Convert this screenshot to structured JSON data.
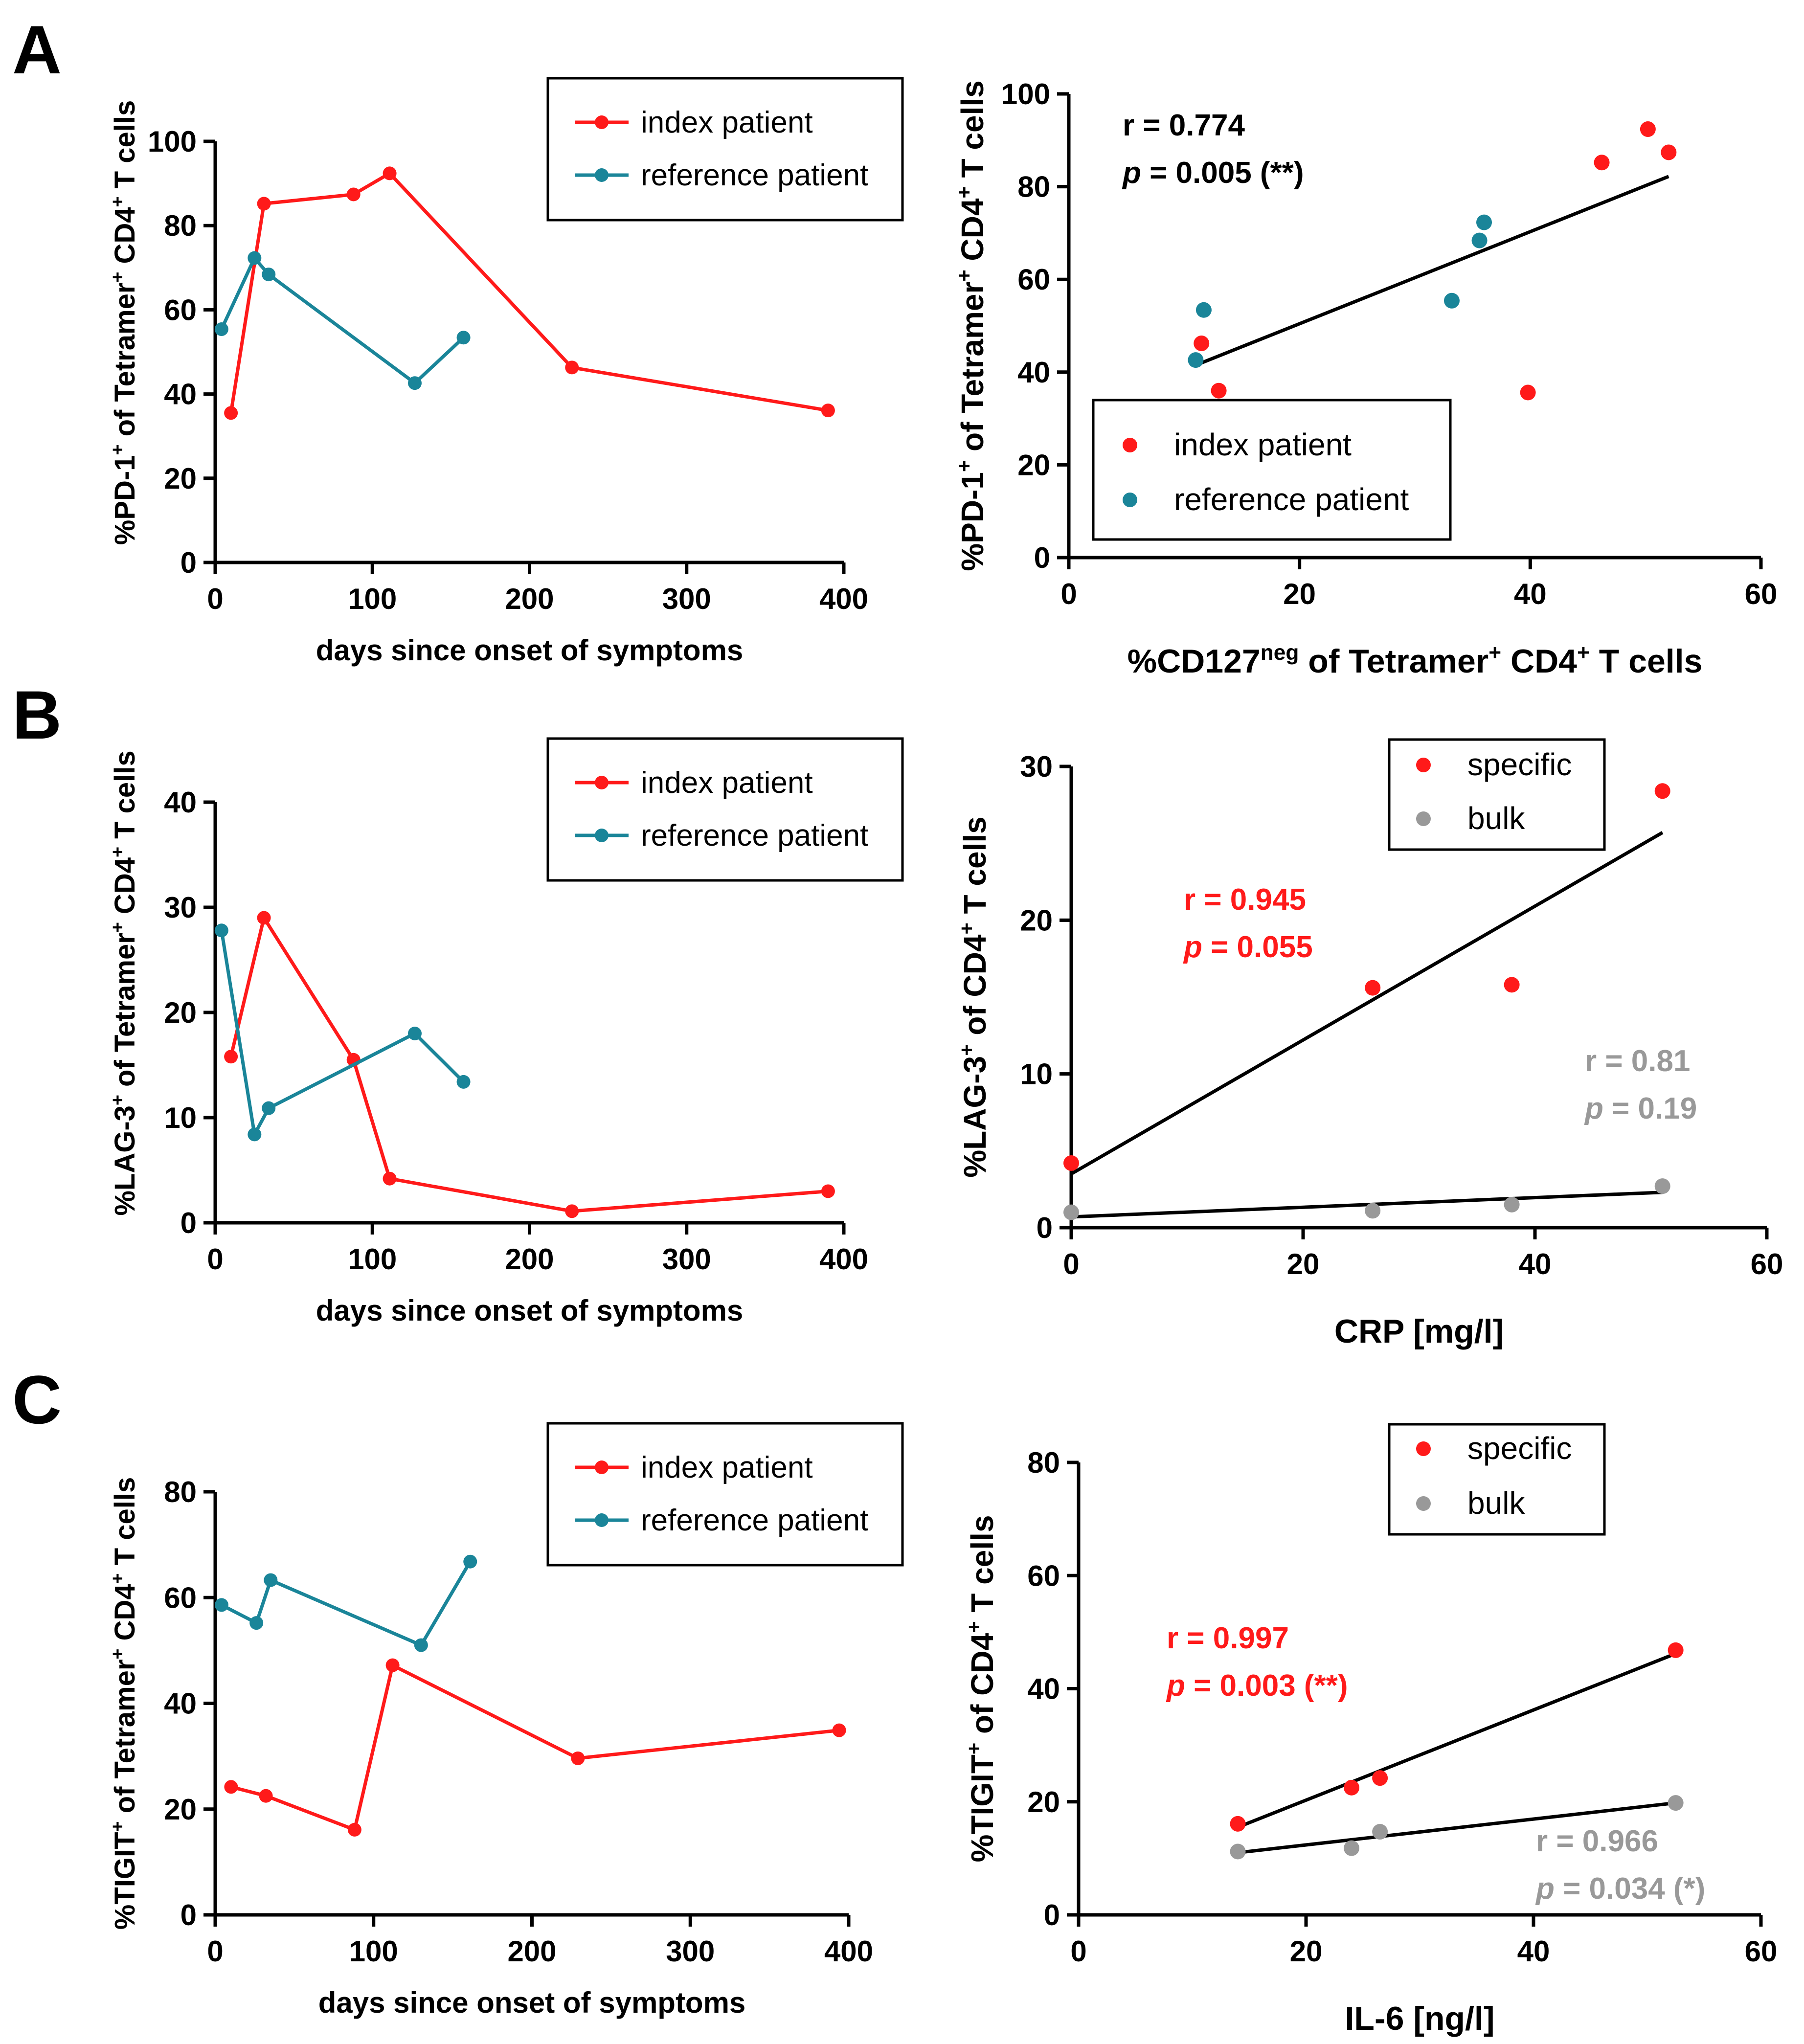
{
  "panel_labels": [
    "A",
    "B",
    "C"
  ],
  "chart_data": [
    {
      "id": "A1",
      "type": "line",
      "ylabel": "%PD-1<sup>+</sup> of Tetramer<sup>+</sup> CD4<sup>+</sup> T cells",
      "xlabel": "days since onset of symptoms",
      "xlim": [
        0,
        400
      ],
      "ylim": [
        0,
        100
      ],
      "xticks": [
        0,
        100,
        200,
        300,
        400
      ],
      "yticks": [
        0,
        20,
        40,
        60,
        80,
        100
      ],
      "legend": {
        "position": "top-right",
        "entries": [
          "index patient",
          "reference patient"
        ]
      },
      "series": [
        {
          "name": "index patient",
          "color": "#ff1a1a",
          "points": [
            [
              10,
              35.5
            ],
            [
              31,
              85.2
            ],
            [
              88,
              87.4
            ],
            [
              111,
              92.4
            ],
            [
              227,
              46.3
            ],
            [
              390,
              36.1
            ]
          ]
        },
        {
          "name": "reference patient",
          "color": "#1a8599",
          "points": [
            [
              4,
              55.4
            ],
            [
              25,
              72.3
            ],
            [
              34,
              68.4
            ],
            [
              127,
              42.6
            ],
            [
              158,
              53.4
            ]
          ]
        }
      ]
    },
    {
      "id": "A2",
      "type": "scatter",
      "ylabel": "%PD-1<sup>+</sup> of Tetramer<sup>+</sup> CD4<sup>+</sup> T cells",
      "xlabel": "%CD127<sup>neg</sup> of Tetramer<sup>+</sup> CD4<sup>+</sup> T cells",
      "xlim": [
        0,
        60
      ],
      "ylim": [
        0,
        100
      ],
      "xticks": [
        0,
        20,
        40,
        60
      ],
      "yticks": [
        0,
        20,
        40,
        60,
        80,
        100
      ],
      "legend": {
        "position": "bottom-left",
        "entries": [
          "index patient",
          "reference patient"
        ]
      },
      "series": [
        {
          "name": "index patient",
          "color": "#ff1a1a",
          "points": [
            [
              11.5,
              46.2
            ],
            [
              13.0,
              36.0
            ],
            [
              39.8,
              35.6
            ],
            [
              46.2,
              85.2
            ],
            [
              50.2,
              92.4
            ],
            [
              52.0,
              87.4
            ]
          ]
        },
        {
          "name": "reference patient",
          "color": "#1a8599",
          "points": [
            [
              11.0,
              42.6
            ],
            [
              11.7,
              53.4
            ],
            [
              33.2,
              55.4
            ],
            [
              35.6,
              68.4
            ],
            [
              36.0,
              72.3
            ]
          ]
        }
      ],
      "fits": [
        {
          "color": "#000000",
          "from": [
            11,
            41.5
          ],
          "to": [
            52,
            82.2
          ]
        }
      ],
      "annotations": [
        {
          "r": "r = 0.774",
          "p_prefix": "p",
          "p_rest": " = 0.005 (**)",
          "color": "#000000"
        }
      ]
    },
    {
      "id": "B1",
      "type": "line",
      "ylabel": "%LAG-3<sup>+</sup> of Tetramer<sup>+</sup> CD4<sup>+</sup> T cells",
      "xlabel": "days since onset of symptoms",
      "xlim": [
        0,
        400
      ],
      "ylim": [
        0,
        40
      ],
      "xticks": [
        0,
        100,
        200,
        300,
        400
      ],
      "yticks": [
        0,
        10,
        20,
        30,
        40
      ],
      "legend": {
        "position": "top-right",
        "entries": [
          "index patient",
          "reference patient"
        ]
      },
      "series": [
        {
          "name": "index patient",
          "color": "#ff1a1a",
          "points": [
            [
              10,
              15.8
            ],
            [
              31,
              29.0
            ],
            [
              88,
              15.5
            ],
            [
              111,
              4.2
            ],
            [
              227,
              1.1
            ],
            [
              390,
              3.0
            ]
          ]
        },
        {
          "name": "reference patient",
          "color": "#1a8599",
          "points": [
            [
              4,
              27.8
            ],
            [
              25,
              8.4
            ],
            [
              34,
              10.9
            ],
            [
              127,
              18.0
            ],
            [
              158,
              13.4
            ]
          ]
        }
      ]
    },
    {
      "id": "B2",
      "type": "scatter",
      "ylabel": "%LAG-3<sup>+</sup> of CD4<sup>+</sup> T cells",
      "xlabel": "CRP [mg/l]",
      "xlim": [
        0,
        60
      ],
      "ylim": [
        0,
        30
      ],
      "xticks": [
        0,
        20,
        40,
        60
      ],
      "yticks": [
        0,
        10,
        20,
        30
      ],
      "legend": {
        "position": "top-right",
        "entries": [
          "specific",
          "bulk"
        ]
      },
      "series": [
        {
          "name": "specific",
          "color": "#ff1a1a",
          "points": [
            [
              0,
              4.2
            ],
            [
              26,
              15.6
            ],
            [
              38,
              15.8
            ],
            [
              51,
              28.4
            ]
          ]
        },
        {
          "name": "bulk",
          "color": "#999999",
          "points": [
            [
              0,
              1.0
            ],
            [
              26,
              1.1
            ],
            [
              38,
              1.5
            ],
            [
              51,
              2.7
            ]
          ]
        }
      ],
      "fits": [
        {
          "color": "#000000",
          "from": [
            0,
            3.5
          ],
          "to": [
            51,
            25.7
          ]
        },
        {
          "color": "#000000",
          "from": [
            0,
            0.7
          ],
          "to": [
            51,
            2.3
          ]
        }
      ],
      "annotations": [
        {
          "r": "r = 0.945",
          "p_prefix": "p",
          "p_rest": " = 0.055",
          "color": "#ff1a1a"
        },
        {
          "r": "r = 0.81",
          "p_prefix": "p",
          "p_rest": " = 0.19",
          "color": "#999999"
        }
      ]
    },
    {
      "id": "C1",
      "type": "line",
      "ylabel": "%TIGIT<sup>+</sup> of Tetramer<sup>+</sup> CD4<sup>+</sup> T cells",
      "xlabel": "days since onset of symptoms",
      "xlim": [
        0,
        400
      ],
      "ylim": [
        0,
        80
      ],
      "xticks": [
        0,
        100,
        200,
        300,
        400
      ],
      "yticks": [
        0,
        20,
        40,
        60,
        80
      ],
      "legend": {
        "position": "top-right",
        "entries": [
          "index patient",
          "reference patient"
        ]
      },
      "series": [
        {
          "name": "index patient",
          "color": "#ff1a1a",
          "points": [
            [
              10,
              24.2
            ],
            [
              32,
              22.5
            ],
            [
              88,
              16.1
            ],
            [
              112,
              47.2
            ],
            [
              229,
              29.6
            ],
            [
              394,
              34.9
            ]
          ]
        },
        {
          "name": "reference patient",
          "color": "#1a8599",
          "points": [
            [
              4,
              58.6
            ],
            [
              26,
              55.2
            ],
            [
              35,
              63.3
            ],
            [
              130,
              51.0
            ],
            [
              161,
              66.8
            ]
          ]
        }
      ]
    },
    {
      "id": "C2",
      "type": "scatter",
      "ylabel": "%TIGIT<sup>+</sup> of CD4<sup>+</sup> T cells",
      "xlabel": "IL-6 [ng/l]",
      "xlim": [
        0,
        60
      ],
      "ylim": [
        0,
        80
      ],
      "xticks": [
        0,
        20,
        40,
        60
      ],
      "yticks": [
        0,
        20,
        40,
        60,
        80
      ],
      "legend": {
        "position": "top-right",
        "entries": [
          "specific",
          "bulk"
        ]
      },
      "series": [
        {
          "name": "specific",
          "color": "#ff1a1a",
          "points": [
            [
              14,
              16.1
            ],
            [
              24,
              22.5
            ],
            [
              26.5,
              24.2
            ],
            [
              52.5,
              46.8
            ]
          ]
        },
        {
          "name": "bulk",
          "color": "#999999",
          "points": [
            [
              14,
              11.2
            ],
            [
              24,
              11.8
            ],
            [
              26.5,
              14.7
            ],
            [
              52.5,
              19.8
            ]
          ]
        }
      ],
      "fits": [
        {
          "color": "#000000",
          "from": [
            14,
            15.5
          ],
          "to": [
            52.5,
            46.2
          ]
        },
        {
          "color": "#000000",
          "from": [
            14,
            11.0
          ],
          "to": [
            52.5,
            19.8
          ]
        }
      ],
      "annotations": [
        {
          "r": "r = 0.997",
          "p_prefix": "p",
          "p_rest": " = 0.003 (**)",
          "color": "#ff1a1a"
        },
        {
          "r": "r = 0.966",
          "p_prefix": "p",
          "p_rest": " = 0.034 (*)",
          "color": "#999999"
        }
      ]
    }
  ]
}
